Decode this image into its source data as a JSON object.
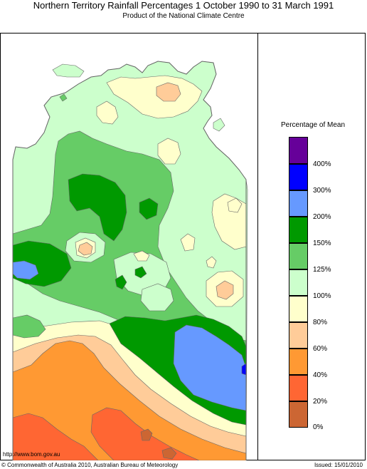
{
  "header": {
    "title": "Northern Territory Rainfall Percentages 1 October 1990 to 31 March 1991",
    "subtitle": "Product of the National Climate Centre"
  },
  "legend": {
    "title": "Percentage of Mean",
    "classes": [
      {
        "label": "",
        "color": "#660099"
      },
      {
        "label": "400%",
        "color": "#0000ff"
      },
      {
        "label": "300%",
        "color": "#6699ff"
      },
      {
        "label": "200%",
        "color": "#009900"
      },
      {
        "label": "150%",
        "color": "#66cc66"
      },
      {
        "label": "125%",
        "color": "#ccffcc"
      },
      {
        "label": "100%",
        "color": "#ffffcc"
      },
      {
        "label": "80%",
        "color": "#ffcc99"
      },
      {
        "label": "60%",
        "color": "#ff9933"
      },
      {
        "label": "40%",
        "color": "#ff6633"
      },
      {
        "label": "20%",
        "color": "#cc6633"
      },
      {
        "label": "0%",
        "color": ""
      }
    ]
  },
  "map": {
    "region": "Northern Territory",
    "border_color": "#666666"
  },
  "footer": {
    "url": "http://www.bom.gov.au",
    "copyright": "© Commonwealth of Australia 2010, Australian Bureau of Meteorology",
    "issued": "Issued: 15/01/2010"
  }
}
